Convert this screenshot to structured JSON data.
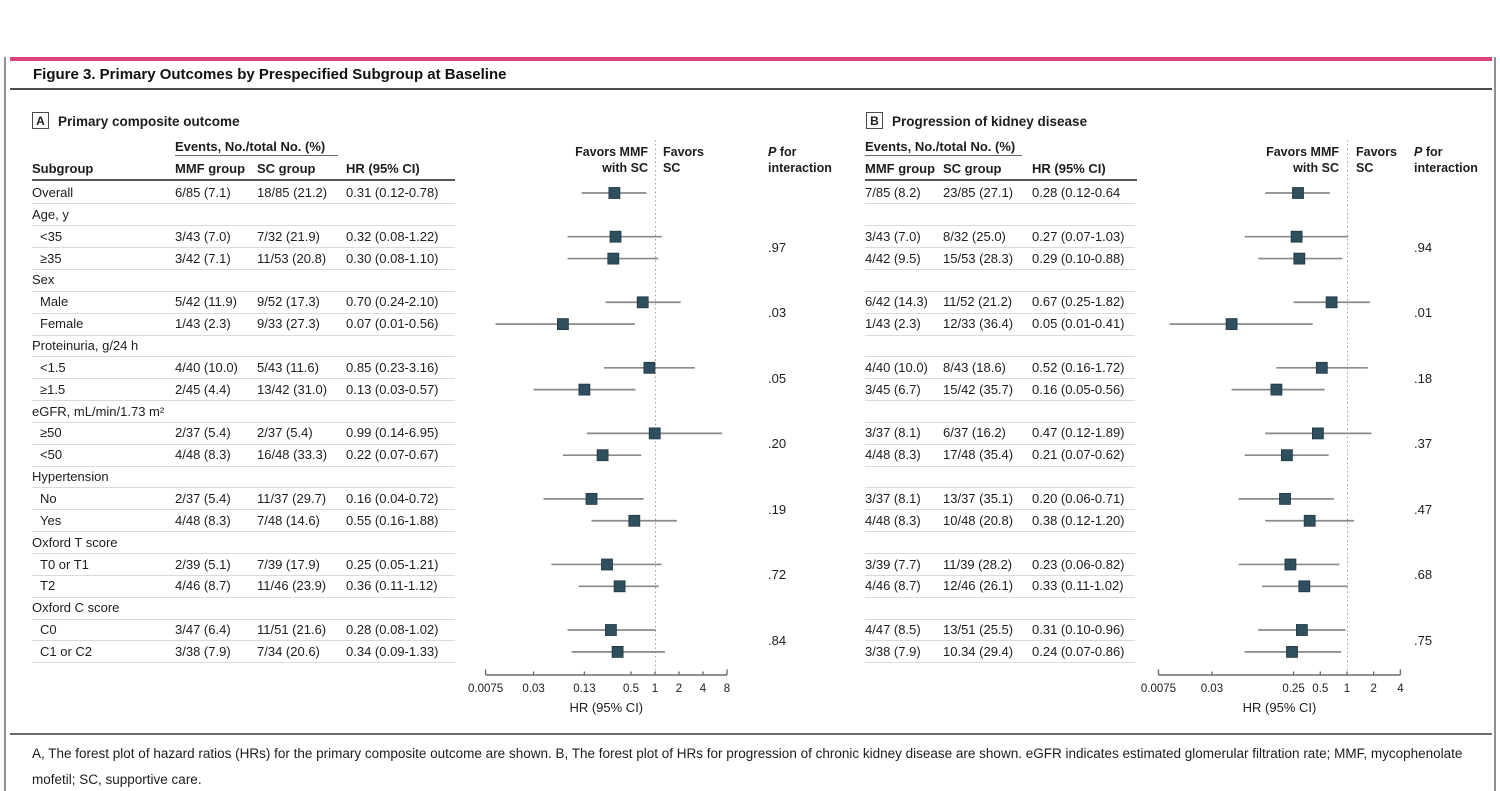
{
  "page": {
    "title": "Figure 3. Primary Outcomes by Prespecified Subgroup at Baseline",
    "caption": "A, The forest plot of hazard ratios (HRs) for the primary composite outcome are shown. B, The forest plot of HRs for progression of chronic kidney disease are shown. eGFR indicates estimated glomerular filtration rate; MMF, mycophenolate mofetil; SC, supportive care."
  },
  "table_headers": {
    "events": "Events, No./total No. (%)",
    "subgroup": "Subgroup",
    "mmf": "MMF group",
    "sc": "SC group",
    "hr": "HR (95% CI)"
  },
  "plot_headers": {
    "favors_left_line1": "Favors MMF",
    "favors_left_line2": "with SC",
    "favors_right_line1": "Favors",
    "favors_right_line2": "SC",
    "p_line1_italic": "P",
    "p_line1_rest": " for",
    "p_line2": "interaction"
  },
  "colors": {
    "accent_pink": "#d6437f",
    "marker": "#2f4f5f",
    "ci_line": "#8a8a8a"
  },
  "chart_data": [
    {
      "type": "forest",
      "panel_label": "A",
      "title": "Primary composite outcome",
      "xlabel": "HR (95% CI)",
      "scale": "log2",
      "ref_line": 1,
      "axis_ticks": [
        "0.0075",
        "0.03",
        "0.13",
        "0.5",
        "1",
        "2",
        "4",
        "8"
      ],
      "rows": [
        {
          "label": "Overall",
          "mmf": "6/85 (7.1)",
          "sc": "18/85 (21.2)",
          "hr_text": "0.31 (0.12-0.78)",
          "hr": 0.31,
          "lo": 0.12,
          "hi": 0.78
        },
        {
          "label": "Age, y",
          "group": true,
          "p": ".97"
        },
        {
          "label": "<35",
          "sub": true,
          "mmf": "3/43 (7.0)",
          "sc": "7/32 (21.9)",
          "hr_text": "0.32 (0.08-1.22)",
          "hr": 0.32,
          "lo": 0.08,
          "hi": 1.22
        },
        {
          "label": "≥35",
          "sub": true,
          "mmf": "3/42 (7.1)",
          "sc": "11/53 (20.8)",
          "hr_text": "0.30 (0.08-1.10)",
          "hr": 0.3,
          "lo": 0.08,
          "hi": 1.1
        },
        {
          "label": "Sex",
          "group": true,
          "p": ".03"
        },
        {
          "label": "Male",
          "sub": true,
          "mmf": "5/42 (11.9)",
          "sc": "9/52 (17.3)",
          "hr_text": "0.70 (0.24-2.10)",
          "hr": 0.7,
          "lo": 0.24,
          "hi": 2.1
        },
        {
          "label": "Female",
          "sub": true,
          "mmf": "1/43 (2.3)",
          "sc": "9/33 (27.3)",
          "hr_text": "0.07 (0.01-0.56)",
          "hr": 0.07,
          "lo": 0.01,
          "hi": 0.56
        },
        {
          "label": "Proteinuria, g/24 h",
          "group": true,
          "p": ".05"
        },
        {
          "label": "<1.5",
          "sub": true,
          "mmf": "4/40 (10.0)",
          "sc": "5/43 (11.6)",
          "hr_text": "0.85 (0.23-3.16)",
          "hr": 0.85,
          "lo": 0.23,
          "hi": 3.16
        },
        {
          "label": "≥1.5",
          "sub": true,
          "mmf": "2/45 (4.4)",
          "sc": "13/42 (31.0)",
          "hr_text": "0.13 (0.03-0.57)",
          "hr": 0.13,
          "lo": 0.03,
          "hi": 0.57
        },
        {
          "label": "eGFR, mL/min/1.73 m²",
          "group": true,
          "p": ".20"
        },
        {
          "label": "≥50",
          "sub": true,
          "mmf": "2/37 (5.4)",
          "sc": "2/37 (5.4)",
          "hr_text": "0.99 (0.14-6.95)",
          "hr": 0.99,
          "lo": 0.14,
          "hi": 6.95
        },
        {
          "label": "<50",
          "sub": true,
          "mmf": "4/48 (8.3)",
          "sc": "16/48 (33.3)",
          "hr_text": "0.22 (0.07-0.67)",
          "hr": 0.22,
          "lo": 0.07,
          "hi": 0.67
        },
        {
          "label": "Hypertension",
          "group": true,
          "p": ".19"
        },
        {
          "label": "No",
          "sub": true,
          "mmf": "2/37 (5.4)",
          "sc": "11/37 (29.7)",
          "hr_text": "0.16 (0.04-0.72)",
          "hr": 0.16,
          "lo": 0.04,
          "hi": 0.72
        },
        {
          "label": "Yes",
          "sub": true,
          "mmf": "4/48 (8.3)",
          "sc": "7/48 (14.6)",
          "hr_text": "0.55 (0.16-1.88)",
          "hr": 0.55,
          "lo": 0.16,
          "hi": 1.88
        },
        {
          "label": "Oxford T score",
          "group": true,
          "p": ".72"
        },
        {
          "label": "T0 or T1",
          "sub": true,
          "mmf": "2/39 (5.1)",
          "sc": "7/39 (17.9)",
          "hr_text": "0.25 (0.05-1.21)",
          "hr": 0.25,
          "lo": 0.05,
          "hi": 1.21
        },
        {
          "label": "T2",
          "sub": true,
          "mmf": "4/46 (8.7)",
          "sc": "11/46 (23.9)",
          "hr_text": "0.36 (0.11-1.12)",
          "hr": 0.36,
          "lo": 0.11,
          "hi": 1.12
        },
        {
          "label": "Oxford C score",
          "group": true,
          "p": ".84"
        },
        {
          "label": "C0",
          "sub": true,
          "mmf": "3/47 (6.4)",
          "sc": "11/51 (21.6)",
          "hr_text": "0.28 (0.08-1.02)",
          "hr": 0.28,
          "lo": 0.08,
          "hi": 1.02
        },
        {
          "label": "C1 or C2",
          "sub": true,
          "mmf": "3/38 (7.9)",
          "sc": "7/34 (20.6)",
          "hr_text": "0.34 (0.09-1.33)",
          "hr": 0.34,
          "lo": 0.09,
          "hi": 1.33
        }
      ]
    },
    {
      "type": "forest",
      "panel_label": "B",
      "title": "Progression of kidney disease",
      "xlabel": "HR (95% CI)",
      "scale": "log2",
      "ref_line": 1,
      "axis_ticks": [
        "0.0075",
        "0.03",
        "0.25",
        "0.5",
        "1",
        "2",
        "4"
      ],
      "rows": [
        {
          "mmf": "7/85 (8.2)",
          "sc": "23/85 (27.1)",
          "hr_text": "0.28 (0.12-0.64",
          "hr": 0.28,
          "lo": 0.12,
          "hi": 0.64
        },
        {
          "group": true,
          "p": ".94"
        },
        {
          "mmf": "3/43 (7.0)",
          "sc": "8/32 (25.0)",
          "hr_text": "0.27 (0.07-1.03)",
          "hr": 0.27,
          "lo": 0.07,
          "hi": 1.03
        },
        {
          "mmf": "4/42 (9.5)",
          "sc": "15/53 (28.3)",
          "hr_text": "0.29 (0.10-0.88)",
          "hr": 0.29,
          "lo": 0.1,
          "hi": 0.88
        },
        {
          "group": true,
          "p": ".01"
        },
        {
          "mmf": "6/42 (14.3)",
          "sc": "11/52 (21.2)",
          "hr_text": "0.67 (0.25-1.82)",
          "hr": 0.67,
          "lo": 0.25,
          "hi": 1.82
        },
        {
          "mmf": "1/43 (2.3)",
          "sc": "12/33 (36.4)",
          "hr_text": "0.05 (0.01-0.41)",
          "hr": 0.05,
          "lo": 0.01,
          "hi": 0.41
        },
        {
          "group": true,
          "p": ".18"
        },
        {
          "mmf": "4/40 (10.0)",
          "sc": "8/43 (18.6)",
          "hr_text": "0.52 (0.16-1.72)",
          "hr": 0.52,
          "lo": 0.16,
          "hi": 1.72
        },
        {
          "mmf": "3/45 (6.7)",
          "sc": "15/42 (35.7)",
          "hr_text": "0.16 (0.05-0.56)",
          "hr": 0.16,
          "lo": 0.05,
          "hi": 0.56
        },
        {
          "group": true,
          "p": ".37"
        },
        {
          "mmf": "3/37 (8.1)",
          "sc": "6/37 (16.2)",
          "hr_text": "0.47 (0.12-1.89)",
          "hr": 0.47,
          "lo": 0.12,
          "hi": 1.89
        },
        {
          "mmf": "4/48 (8.3)",
          "sc": "17/48 (35.4)",
          "hr_text": "0.21 (0.07-0.62)",
          "hr": 0.21,
          "lo": 0.07,
          "hi": 0.62
        },
        {
          "group": true,
          "p": ".47"
        },
        {
          "mmf": "3/37 (8.1)",
          "sc": "13/37 (35.1)",
          "hr_text": "0.20 (0.06-0.71)",
          "hr": 0.2,
          "lo": 0.06,
          "hi": 0.71
        },
        {
          "mmf": "4/48 (8.3)",
          "sc": "10/48 (20.8)",
          "hr_text": "0.38 (0.12-1.20)",
          "hr": 0.38,
          "lo": 0.12,
          "hi": 1.2
        },
        {
          "group": true,
          "p": ".68"
        },
        {
          "mmf": "3/39 (7.7)",
          "sc": "11/39 (28.2)",
          "hr_text": "0.23 (0.06-0.82)",
          "hr": 0.23,
          "lo": 0.06,
          "hi": 0.82
        },
        {
          "mmf": "4/46 (8.7)",
          "sc": "12/46 (26.1)",
          "hr_text": "0.33 (0.11-1.02)",
          "hr": 0.33,
          "lo": 0.11,
          "hi": 1.02
        },
        {
          "group": true,
          "p": ".75"
        },
        {
          "mmf": "4/47 (8.5)",
          "sc": "13/51 (25.5)",
          "hr_text": "0.31 (0.10-0.96)",
          "hr": 0.31,
          "lo": 0.1,
          "hi": 0.96
        },
        {
          "mmf": "3/38 (7.9)",
          "sc": "10.34 (29.4)",
          "hr_text": "0.24 (0.07-0.86)",
          "hr": 0.24,
          "lo": 0.07,
          "hi": 0.86
        }
      ]
    }
  ]
}
